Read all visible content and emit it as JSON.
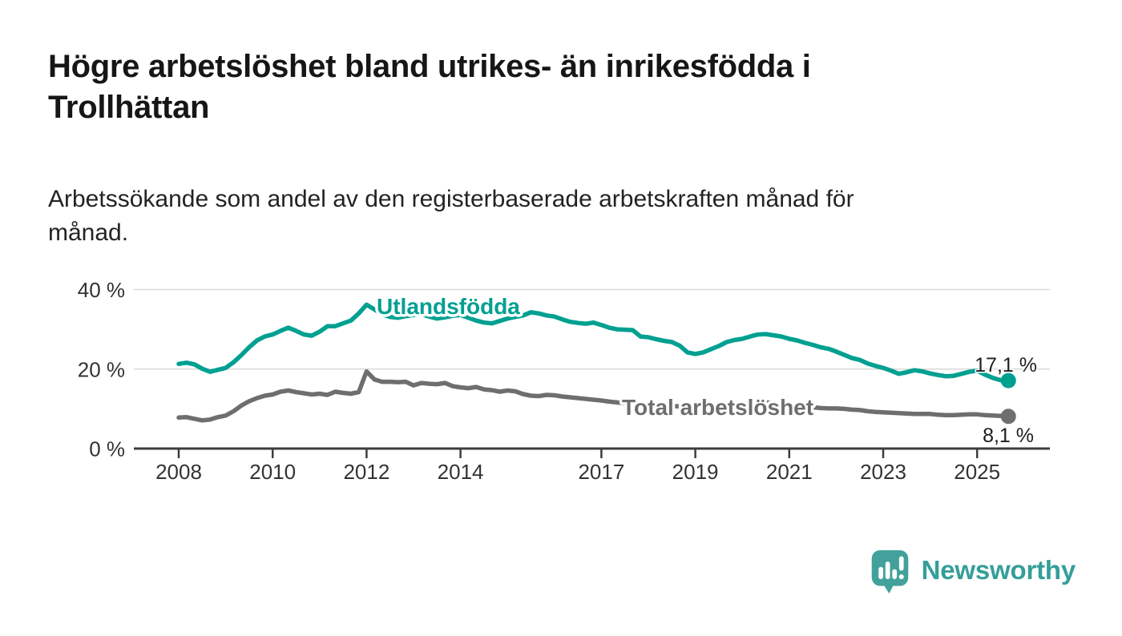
{
  "header": {
    "title_line1": "Högre arbetslöshet bland utrikes- än inrikesfödda i",
    "title_line2": "Trollhättan",
    "subtitle_line1": "Arbetssökande som andel av den registerbaserade arbetskraften månad för",
    "subtitle_line2": "månad."
  },
  "chart_data": {
    "type": "line",
    "unit": "%",
    "x_start": {
      "year": 2008,
      "month": 1
    },
    "x_step_months": 2,
    "x_end_approx": "mid-2025",
    "ylim": [
      0,
      44
    ],
    "grid": "horizontal-light",
    "yticks": [
      {
        "value": 0,
        "label": "0 %"
      },
      {
        "value": 20,
        "label": "20 %"
      },
      {
        "value": 40,
        "label": "40 %"
      }
    ],
    "xticks": [
      {
        "year": 2008,
        "label": "2008"
      },
      {
        "year": 2010,
        "label": "2010"
      },
      {
        "year": 2012,
        "label": "2012"
      },
      {
        "year": 2014,
        "label": "2014"
      },
      {
        "year": 2017,
        "label": "2017"
      },
      {
        "year": 2019,
        "label": "2019"
      },
      {
        "year": 2021,
        "label": "2021"
      },
      {
        "year": 2023,
        "label": "2023"
      },
      {
        "year": 2025,
        "label": "2025"
      }
    ],
    "series": [
      {
        "name": "Utlandsfödda",
        "color": "#00a091",
        "end_label": "17,1 %",
        "end_value": 17.1,
        "values": [
          21.3,
          21.6,
          21.2,
          20.1,
          19.3,
          19.8,
          20.3,
          21.7,
          23.5,
          25.5,
          27.2,
          28.2,
          28.7,
          29.6,
          30.4,
          29.6,
          28.7,
          28.4,
          29.4,
          30.8,
          30.8,
          31.5,
          32.2,
          34.0,
          36.2,
          35.0,
          33.8,
          33.1,
          32.9,
          33.3,
          33.6,
          33.8,
          33.2,
          32.7,
          33.0,
          33.4,
          33.6,
          32.9,
          32.2,
          31.7,
          31.5,
          32.1,
          32.7,
          33.1,
          33.5,
          34.3,
          34.0,
          33.5,
          33.2,
          32.5,
          31.9,
          31.6,
          31.4,
          31.7,
          31.1,
          30.4,
          30.0,
          29.9,
          29.8,
          28.2,
          28.0,
          27.5,
          27.1,
          26.8,
          25.9,
          24.2,
          23.8,
          24.2,
          25.0,
          25.8,
          26.8,
          27.3,
          27.6,
          28.2,
          28.7,
          28.8,
          28.5,
          28.2,
          27.6,
          27.2,
          26.6,
          26.1,
          25.5,
          25.1,
          24.4,
          23.6,
          22.8,
          22.3,
          21.4,
          20.8,
          20.3,
          19.6,
          18.8,
          19.2,
          19.7,
          19.4,
          18.9,
          18.5,
          18.2,
          18.3,
          18.8,
          19.3,
          19.6,
          18.6,
          17.8,
          17.2,
          17.1
        ]
      },
      {
        "name": "Total arbetslöshet",
        "color": "#6e6e71",
        "end_label": "8,1 %",
        "end_value": 8.1,
        "values": [
          7.8,
          7.9,
          7.5,
          7.1,
          7.3,
          7.9,
          8.3,
          9.4,
          10.8,
          11.9,
          12.7,
          13.3,
          13.6,
          14.3,
          14.6,
          14.2,
          13.9,
          13.6,
          13.8,
          13.5,
          14.3,
          14.0,
          13.8,
          14.2,
          19.4,
          17.4,
          16.8,
          16.8,
          16.7,
          16.8,
          15.9,
          16.5,
          16.3,
          16.2,
          16.5,
          15.7,
          15.4,
          15.2,
          15.5,
          14.9,
          14.7,
          14.3,
          14.6,
          14.4,
          13.7,
          13.3,
          13.2,
          13.5,
          13.4,
          13.1,
          12.9,
          12.7,
          12.5,
          12.3,
          12.1,
          11.8,
          11.6,
          11.4,
          11.2,
          11.1,
          11.0,
          10.9,
          10.8,
          10.7,
          10.6,
          10.5,
          10.5,
          10.4,
          10.4,
          10.5,
          10.6,
          10.7,
          10.9,
          11.3,
          11.7,
          11.6,
          11.4,
          11.2,
          11.0,
          10.8,
          10.6,
          10.4,
          10.2,
          10.1,
          10.1,
          10.0,
          9.8,
          9.7,
          9.4,
          9.2,
          9.1,
          9.0,
          8.9,
          8.8,
          8.7,
          8.7,
          8.7,
          8.5,
          8.4,
          8.4,
          8.5,
          8.6,
          8.6,
          8.4,
          8.3,
          8.2,
          8.1
        ]
      }
    ]
  },
  "branding": {
    "wordmark": "Newsworthy",
    "icon": "speech-bubble-bar-chart",
    "icon_color": "#42a29b",
    "wordmark_color": "#349e99"
  }
}
